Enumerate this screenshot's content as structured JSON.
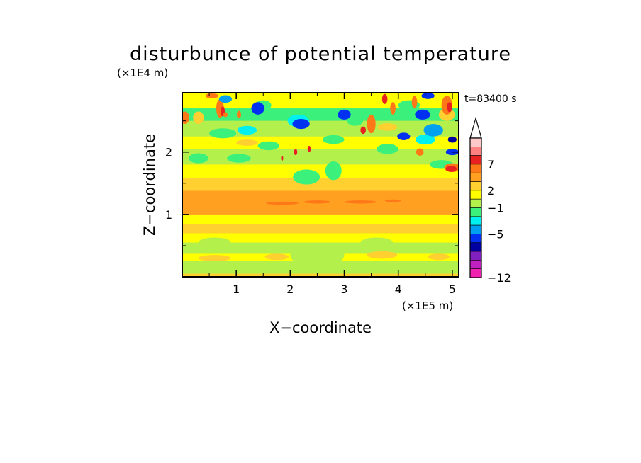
{
  "chart_data": {
    "type": "heatmap",
    "title": "disturbunce of potential temperature",
    "time_label": "t=83400 s",
    "xlabel": "X−coordinate",
    "ylabel": "Z−coordinate",
    "x_scale_label": "(×1E5 m)",
    "y_scale_label": "(×1E4 m)",
    "xlim": [
      0,
      5.12
    ],
    "ylim": [
      0,
      2.95
    ],
    "x_ticks": [
      "1",
      "2",
      "3",
      "4",
      "5"
    ],
    "y_ticks": [
      "1",
      "2"
    ],
    "colorbar": {
      "labels": [
        "7",
        "2",
        "−1",
        "−5",
        "−12"
      ],
      "colors": [
        "#ffc8c8",
        "#ff8080",
        "#e82020",
        "#ff7818",
        "#ffa020",
        "#ffd030",
        "#ffff00",
        "#b4f04c",
        "#3cf07c",
        "#00f0f0",
        "#00a0f0",
        "#0030f0",
        "#0000a0",
        "#8020c0",
        "#c020c0",
        "#f020b0"
      ],
      "extend": "max"
    },
    "bands": [
      {
        "z": [
          0.05,
          0.25
        ],
        "level": 2
      },
      {
        "z": [
          0.25,
          0.37
        ],
        "level": 3
      },
      {
        "z": [
          0.37,
          0.55
        ],
        "level": 2
      },
      {
        "z": [
          0.55,
          0.7
        ],
        "level": 3
      },
      {
        "z": [
          0.7,
          0.85
        ],
        "level": 4
      },
      {
        "z": [
          0.85,
          1.0
        ],
        "level": 3
      },
      {
        "z": [
          1.0,
          1.38
        ],
        "level": 5
      },
      {
        "z": [
          1.38,
          1.58
        ],
        "level": 4
      },
      {
        "z": [
          1.58,
          1.8
        ],
        "level": 3
      },
      {
        "z": [
          1.8,
          2.05
        ],
        "level": 2
      },
      {
        "z": [
          2.05,
          2.25
        ],
        "level": 3
      },
      {
        "z": [
          2.25,
          2.5
        ],
        "level": 2
      },
      {
        "z": [
          2.5,
          2.7
        ],
        "level": 1
      },
      {
        "z": [
          2.7,
          2.95
        ],
        "level": 3
      }
    ],
    "blobs": [
      {
        "x": 0.75,
        "z": 2.3,
        "rx": 0.25,
        "rz": 0.08,
        "level": 1
      },
      {
        "x": 0.3,
        "z": 1.9,
        "rx": 0.18,
        "rz": 0.08,
        "level": 1
      },
      {
        "x": 1.05,
        "z": 1.9,
        "rx": 0.22,
        "rz": 0.07,
        "level": 1
      },
      {
        "x": 1.2,
        "z": 2.35,
        "rx": 0.18,
        "rz": 0.07,
        "level": 0
      },
      {
        "x": 1.5,
        "z": 2.75,
        "rx": 0.15,
        "rz": 0.08,
        "level": 1
      },
      {
        "x": 2.15,
        "z": 2.5,
        "rx": 0.2,
        "rz": 0.1,
        "level": 0
      },
      {
        "x": 2.3,
        "z": 1.6,
        "rx": 0.25,
        "rz": 0.12,
        "level": 1
      },
      {
        "x": 2.8,
        "z": 1.7,
        "rx": 0.15,
        "rz": 0.15,
        "level": 1
      },
      {
        "x": 3.2,
        "z": 2.5,
        "rx": 0.15,
        "rz": 0.08,
        "level": 1
      },
      {
        "x": 4.5,
        "z": 2.2,
        "rx": 0.18,
        "rz": 0.08,
        "level": 0
      },
      {
        "x": 4.65,
        "z": 2.35,
        "rx": 0.18,
        "rz": 0.1,
        "level": -1
      },
      {
        "x": 4.8,
        "z": 1.8,
        "rx": 0.22,
        "rz": 0.07,
        "level": 1
      },
      {
        "x": 4.2,
        "z": 2.75,
        "rx": 0.2,
        "rz": 0.08,
        "level": 1
      },
      {
        "x": 3.8,
        "z": 2.05,
        "rx": 0.2,
        "rz": 0.08,
        "level": 1
      },
      {
        "x": 5.0,
        "z": 2.0,
        "rx": 0.12,
        "rz": 0.05,
        "level": -2
      },
      {
        "x": 0.6,
        "z": 0.55,
        "rx": 0.3,
        "rz": 0.08,
        "level": 2
      },
      {
        "x": 3.6,
        "z": 0.55,
        "rx": 0.3,
        "rz": 0.08,
        "level": 2
      },
      {
        "x": 2.5,
        "z": 0.35,
        "rx": 0.5,
        "rz": 0.2,
        "level": 2
      },
      {
        "x": 1.6,
        "z": 2.1,
        "rx": 0.2,
        "rz": 0.07,
        "level": 1
      },
      {
        "x": 2.8,
        "z": 2.2,
        "rx": 0.2,
        "rz": 0.07,
        "level": 1
      },
      {
        "x": 0.6,
        "z": 0.3,
        "rx": 0.3,
        "rz": 0.05,
        "level": 4
      },
      {
        "x": 1.75,
        "z": 0.32,
        "rx": 0.22,
        "rz": 0.05,
        "level": 4
      },
      {
        "x": 3.7,
        "z": 0.35,
        "rx": 0.28,
        "rz": 0.06,
        "level": 4
      },
      {
        "x": 4.75,
        "z": 0.32,
        "rx": 0.2,
        "rz": 0.05,
        "level": 4
      },
      {
        "x": 1.2,
        "z": 2.15,
        "rx": 0.2,
        "rz": 0.05,
        "level": 4
      },
      {
        "x": 3.8,
        "z": 2.4,
        "rx": 0.18,
        "rz": 0.06,
        "level": 4
      },
      {
        "x": 4.7,
        "z": 1.45,
        "rx": 0.3,
        "rz": 0.06,
        "level": 4
      },
      {
        "x": 0.3,
        "z": 1.45,
        "rx": 0.25,
        "rz": 0.05,
        "level": 4
      },
      {
        "x": 0.3,
        "z": 2.55,
        "rx": 0.1,
        "rz": 0.1,
        "level": 4
      },
      {
        "x": 4.9,
        "z": 2.6,
        "rx": 0.15,
        "rz": 0.1,
        "level": 4
      },
      {
        "x": 0.05,
        "z": 2.55,
        "rx": 0.08,
        "rz": 0.1,
        "level": 6
      },
      {
        "x": 0.7,
        "z": 2.7,
        "rx": 0.07,
        "rz": 0.15,
        "level": 6
      },
      {
        "x": 0.75,
        "z": 2.65,
        "rx": 0.04,
        "rz": 0.08,
        "level": 7
      },
      {
        "x": 1.05,
        "z": 2.6,
        "rx": 0.04,
        "rz": 0.06,
        "level": 6
      },
      {
        "x": 3.5,
        "z": 2.45,
        "rx": 0.08,
        "rz": 0.15,
        "level": 6
      },
      {
        "x": 3.35,
        "z": 2.35,
        "rx": 0.05,
        "rz": 0.06,
        "level": 7
      },
      {
        "x": 3.9,
        "z": 2.7,
        "rx": 0.05,
        "rz": 0.1,
        "level": 6
      },
      {
        "x": 3.75,
        "z": 2.85,
        "rx": 0.05,
        "rz": 0.08,
        "level": 7
      },
      {
        "x": 4.3,
        "z": 2.8,
        "rx": 0.05,
        "rz": 0.1,
        "level": 6
      },
      {
        "x": 4.9,
        "z": 2.75,
        "rx": 0.1,
        "rz": 0.15,
        "level": 6
      },
      {
        "x": 4.95,
        "z": 2.72,
        "rx": 0.05,
        "rz": 0.08,
        "level": 7
      },
      {
        "x": 4.4,
        "z": 2.0,
        "rx": 0.07,
        "rz": 0.06,
        "level": 6
      },
      {
        "x": 5.0,
        "z": 1.75,
        "rx": 0.15,
        "rz": 0.07,
        "level": 6
      },
      {
        "x": 4.98,
        "z": 1.73,
        "rx": 0.1,
        "rz": 0.05,
        "level": 7
      },
      {
        "x": 2.1,
        "z": 2.0,
        "rx": 0.03,
        "rz": 0.05,
        "level": 7
      },
      {
        "x": 2.35,
        "z": 2.05,
        "rx": 0.03,
        "rz": 0.05,
        "level": 7
      },
      {
        "x": 1.85,
        "z": 1.9,
        "rx": 0.02,
        "rz": 0.04,
        "level": 7
      },
      {
        "x": 1.85,
        "z": 1.18,
        "rx": 0.3,
        "rz": 0.025,
        "level": 6
      },
      {
        "x": 2.5,
        "z": 1.2,
        "rx": 0.25,
        "rz": 0.025,
        "level": 6
      },
      {
        "x": 3.3,
        "z": 1.2,
        "rx": 0.3,
        "rz": 0.025,
        "level": 6
      },
      {
        "x": 3.9,
        "z": 1.22,
        "rx": 0.15,
        "rz": 0.02,
        "level": 6
      },
      {
        "x": 0.55,
        "z": 2.9,
        "rx": 0.12,
        "rz": 0.04,
        "level": 6
      },
      {
        "x": 0.8,
        "z": 2.6,
        "rx": 0.04,
        "rz": 0.04,
        "level": 6
      },
      {
        "x": 1.4,
        "z": 2.7,
        "rx": 0.12,
        "rz": 0.1,
        "level": -2
      },
      {
        "x": 2.2,
        "z": 2.45,
        "rx": 0.16,
        "rz": 0.08,
        "level": -2
      },
      {
        "x": 4.45,
        "z": 2.6,
        "rx": 0.14,
        "rz": 0.08,
        "level": -2
      },
      {
        "x": 4.1,
        "z": 2.25,
        "rx": 0.12,
        "rz": 0.06,
        "level": -2
      },
      {
        "x": 3.0,
        "z": 2.6,
        "rx": 0.12,
        "rz": 0.08,
        "level": -2
      },
      {
        "x": 5.0,
        "z": 2.2,
        "rx": 0.08,
        "rz": 0.05,
        "level": -3
      },
      {
        "x": 4.55,
        "z": 2.9,
        "rx": 0.12,
        "rz": 0.05,
        "level": -2
      },
      {
        "x": 0.8,
        "z": 2.85,
        "rx": 0.12,
        "rz": 0.06,
        "level": -1
      }
    ]
  }
}
